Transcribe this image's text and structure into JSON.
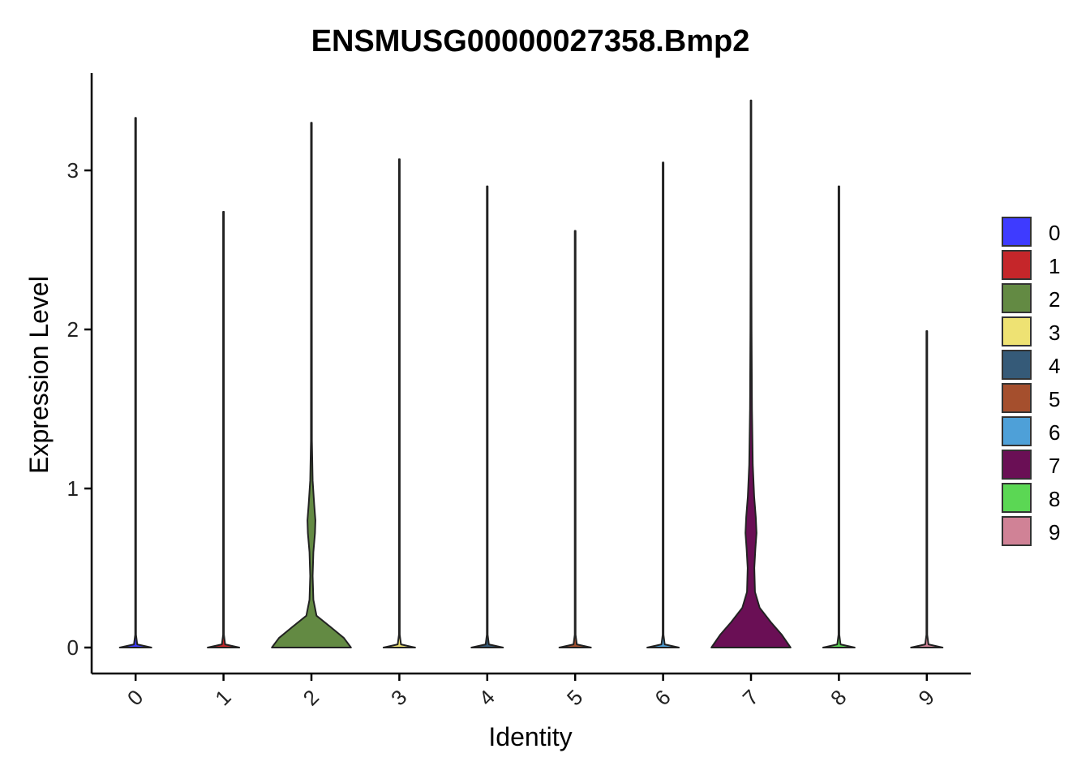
{
  "chart_data": {
    "type": "violin",
    "title": "ENSMUSG00000027358.Bmp2",
    "xlabel": "Identity",
    "ylabel": "Expression Level",
    "categories": [
      "0",
      "1",
      "2",
      "3",
      "4",
      "5",
      "6",
      "7",
      "8",
      "9"
    ],
    "ylim": [
      -0.16,
      3.6
    ],
    "yticks": [
      0,
      1,
      2,
      3
    ],
    "series": [
      {
        "category": "0",
        "color": "#3E3BFF",
        "max": 3.33,
        "profile": [
          [
            0,
            0.4
          ],
          [
            0.02,
            0.04
          ],
          [
            0.08,
            0.01
          ],
          [
            3.33,
            0.01
          ]
        ]
      },
      {
        "category": "1",
        "color": "#C5262A",
        "max": 2.74,
        "profile": [
          [
            0,
            0.4
          ],
          [
            0.02,
            0.04
          ],
          [
            0.08,
            0.01
          ],
          [
            2.74,
            0.01
          ]
        ]
      },
      {
        "category": "2",
        "color": "#638A43",
        "max": 3.3,
        "profile": [
          [
            0,
            1.0
          ],
          [
            0.06,
            0.82
          ],
          [
            0.13,
            0.48
          ],
          [
            0.2,
            0.13
          ],
          [
            0.3,
            0.05
          ],
          [
            0.45,
            0.03
          ],
          [
            0.6,
            0.05
          ],
          [
            0.72,
            0.09
          ],
          [
            0.8,
            0.1
          ],
          [
            0.9,
            0.07
          ],
          [
            1.05,
            0.03
          ],
          [
            1.3,
            0.012
          ],
          [
            2.2,
            0.01
          ],
          [
            3.3,
            0.01
          ]
        ]
      },
      {
        "category": "3",
        "color": "#EEE273",
        "max": 3.07,
        "profile": [
          [
            0,
            0.4
          ],
          [
            0.02,
            0.04
          ],
          [
            0.08,
            0.01
          ],
          [
            3.07,
            0.01
          ]
        ]
      },
      {
        "category": "4",
        "color": "#355A78",
        "max": 2.9,
        "profile": [
          [
            0,
            0.4
          ],
          [
            0.02,
            0.04
          ],
          [
            0.08,
            0.01
          ],
          [
            2.9,
            0.01
          ]
        ]
      },
      {
        "category": "5",
        "color": "#A54F2D",
        "max": 2.62,
        "profile": [
          [
            0,
            0.4
          ],
          [
            0.02,
            0.04
          ],
          [
            0.08,
            0.01
          ],
          [
            2.62,
            0.01
          ]
        ]
      },
      {
        "category": "6",
        "color": "#4EA0D8",
        "max": 3.05,
        "profile": [
          [
            0,
            0.4
          ],
          [
            0.02,
            0.04
          ],
          [
            0.08,
            0.01
          ],
          [
            3.05,
            0.01
          ]
        ]
      },
      {
        "category": "7",
        "color": "#6A0F55",
        "max": 3.44,
        "profile": [
          [
            0,
            1.0
          ],
          [
            0.08,
            0.78
          ],
          [
            0.16,
            0.5
          ],
          [
            0.25,
            0.22
          ],
          [
            0.35,
            0.1
          ],
          [
            0.5,
            0.085
          ],
          [
            0.62,
            0.11
          ],
          [
            0.72,
            0.14
          ],
          [
            0.82,
            0.12
          ],
          [
            0.95,
            0.08
          ],
          [
            1.15,
            0.045
          ],
          [
            1.5,
            0.025
          ],
          [
            2.0,
            0.015
          ],
          [
            2.5,
            0.01
          ],
          [
            3.44,
            0.008
          ]
        ]
      },
      {
        "category": "8",
        "color": "#5BD754",
        "max": 2.9,
        "profile": [
          [
            0,
            0.4
          ],
          [
            0.02,
            0.04
          ],
          [
            0.08,
            0.01
          ],
          [
            2.9,
            0.01
          ]
        ]
      },
      {
        "category": "9",
        "color": "#D08296",
        "max": 1.99,
        "profile": [
          [
            0,
            0.4
          ],
          [
            0.02,
            0.04
          ],
          [
            0.08,
            0.01
          ],
          [
            1.99,
            0.01
          ]
        ]
      }
    ],
    "legend": {
      "position": "right",
      "entries": [
        "0",
        "1",
        "2",
        "3",
        "4",
        "5",
        "6",
        "7",
        "8",
        "9"
      ]
    },
    "grid": false
  }
}
